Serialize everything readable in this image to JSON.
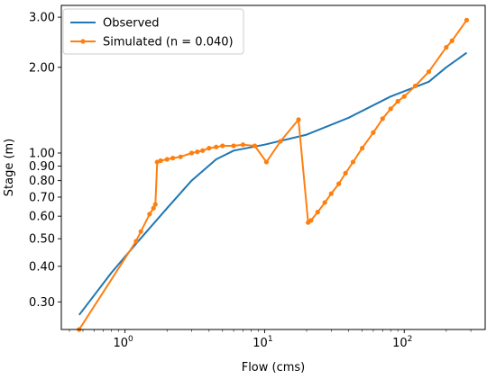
{
  "chart_data": {
    "type": "line",
    "title": "",
    "xlabel": "Flow (cms)",
    "ylabel": "Stage (m)",
    "xscale": "log",
    "yscale": "log",
    "xlim": [
      0.35,
      380
    ],
    "ylim": [
      0.24,
      3.3
    ],
    "grid": false,
    "legend_position": "upper-left",
    "x_ticks": [
      {
        "value": 1,
        "base": "10",
        "exp": "0"
      },
      {
        "value": 10,
        "base": "10",
        "exp": "1"
      },
      {
        "value": 100,
        "base": "10",
        "exp": "2"
      }
    ],
    "y_ticks": [
      {
        "value": 0.3,
        "label": "0.30"
      },
      {
        "value": 0.4,
        "label": "0.40"
      },
      {
        "value": 0.5,
        "label": "0.50"
      },
      {
        "value": 0.6,
        "label": "0.60"
      },
      {
        "value": 0.7,
        "label": "0.70"
      },
      {
        "value": 0.8,
        "label": "0.80"
      },
      {
        "value": 0.9,
        "label": "0.90"
      },
      {
        "value": 1.0,
        "label": "1.00"
      },
      {
        "value": 2.0,
        "label": "2.00"
      },
      {
        "value": 3.0,
        "label": "3.00"
      }
    ],
    "series": [
      {
        "name": "Observed",
        "color": "#1f77b4",
        "marker": false,
        "x": [
          0.47,
          0.8,
          1.2,
          2.0,
          3.0,
          4.5,
          6.0,
          10,
          20,
          40,
          80,
          150,
          200,
          280
        ],
        "y": [
          0.27,
          0.38,
          0.48,
          0.64,
          0.8,
          0.95,
          1.02,
          1.07,
          1.16,
          1.33,
          1.58,
          1.78,
          2.0,
          2.25
        ]
      },
      {
        "name": "Simulated (n = 0.040)",
        "color": "#ff7f0e",
        "marker": true,
        "x": [
          0.47,
          1.2,
          1.3,
          1.5,
          1.6,
          1.65,
          1.7,
          1.8,
          2.0,
          2.2,
          2.5,
          3.0,
          3.3,
          3.6,
          4.0,
          4.5,
          5.0,
          6.0,
          7.0,
          8.5,
          10.3,
          13,
          17.5,
          20.5,
          21.5,
          24,
          27,
          30,
          34,
          38,
          43,
          50,
          60,
          70,
          80,
          90,
          100,
          120,
          150,
          200,
          220,
          280
        ],
        "y": [
          0.24,
          0.49,
          0.53,
          0.61,
          0.64,
          0.66,
          0.93,
          0.94,
          0.95,
          0.96,
          0.97,
          1.0,
          1.01,
          1.02,
          1.04,
          1.05,
          1.06,
          1.06,
          1.07,
          1.06,
          0.93,
          1.1,
          1.31,
          0.57,
          0.58,
          0.62,
          0.67,
          0.72,
          0.78,
          0.85,
          0.93,
          1.04,
          1.18,
          1.32,
          1.43,
          1.52,
          1.58,
          1.72,
          1.93,
          2.35,
          2.48,
          2.93
        ]
      }
    ]
  }
}
